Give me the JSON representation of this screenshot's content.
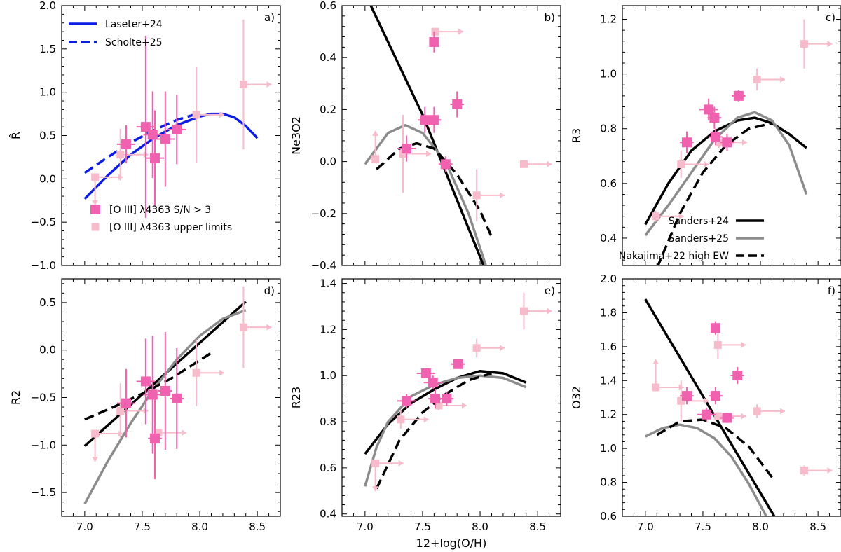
{
  "colors": {
    "detected": "#f062b0",
    "upper_limit": "#f7bccb",
    "laseter": "#0b1de3",
    "scholte": "#0b1de3",
    "sanders24": "#000000",
    "sanders25": "#8c8c8c",
    "nakajima": "#000000"
  },
  "chart_data": [
    {
      "type": "scatter",
      "panel": "a)",
      "ylabel": "R̂",
      "xlabel": "",
      "xlim": [
        6.8,
        8.7
      ],
      "ylim": [
        -1.0,
        2.0
      ],
      "xticks": [
        "7.0",
        "7.5",
        "8.0",
        "8.5"
      ],
      "yticks": [
        "−1.0",
        "−0.5",
        "0.0",
        "0.5",
        "1.0",
        "1.5",
        "2.0"
      ],
      "show_xticklabels": false,
      "legend": {
        "position": "top-left",
        "entries": [
          {
            "label": "Laseter+24",
            "style": "solid",
            "color": "#0b1de3"
          },
          {
            "label": "Scholte+25",
            "style": "dashed",
            "color": "#0b1de3"
          }
        ]
      },
      "legend2": {
        "position": "bottom-left",
        "entries": [
          {
            "label": "[O III] λ4363 S/N > 3",
            "kind": "detected"
          },
          {
            "label": "[O III] λ4363 upper limits",
            "kind": "upper"
          }
        ]
      },
      "curves": [
        {
          "name": "Laseter+24",
          "style": "solid",
          "color": "#0b1de3",
          "x": [
            7.0,
            7.2,
            7.4,
            7.6,
            7.8,
            8.0,
            8.1,
            8.2,
            8.3,
            8.4,
            8.5
          ],
          "y": [
            -0.23,
            0.04,
            0.28,
            0.47,
            0.62,
            0.72,
            0.75,
            0.75,
            0.71,
            0.61,
            0.47
          ]
        },
        {
          "name": "Scholte+25",
          "style": "dashed",
          "color": "#0b1de3",
          "x": [
            7.0,
            7.2,
            7.4,
            7.6,
            7.8,
            8.0
          ],
          "y": [
            0.07,
            0.25,
            0.42,
            0.56,
            0.68,
            0.76
          ]
        }
      ],
      "detected": [
        {
          "x": 7.36,
          "y": 0.4,
          "xerr": 0.08,
          "yerr": 0.22
        },
        {
          "x": 7.53,
          "y": 0.6,
          "xerr": 0.08,
          "yerr": 1.05
        },
        {
          "x": 7.59,
          "y": 0.51,
          "xerr": 0.08,
          "yerr": 0.5
        },
        {
          "x": 7.61,
          "y": 0.24,
          "xerr": 0.08,
          "yerr": 0.55
        },
        {
          "x": 7.7,
          "y": 0.46,
          "xerr": 0.08,
          "yerr": 0.55
        },
        {
          "x": 7.8,
          "y": 0.57,
          "xerr": 0.08,
          "yerr": 0.4
        }
      ],
      "upper_limits": [
        {
          "x": 7.09,
          "y": 0.02,
          "arrows": [
            "right",
            "down"
          ],
          "yerr": 0.0
        },
        {
          "x": 7.31,
          "y": 0.28,
          "arrows": [
            "right"
          ],
          "yerr": 0.3
        },
        {
          "x": 7.97,
          "y": 0.74,
          "arrows": [
            "right"
          ],
          "yerr": 0.55
        },
        {
          "x": 8.38,
          "y": 1.09,
          "arrows": [
            "right"
          ],
          "yerr": 0.75
        }
      ]
    },
    {
      "type": "scatter",
      "panel": "b)",
      "ylabel": "Ne3O2",
      "xlabel": "",
      "xlim": [
        6.8,
        8.7
      ],
      "ylim": [
        -0.4,
        0.6
      ],
      "xticks": [
        "7.0",
        "7.5",
        "8.0",
        "8.5"
      ],
      "yticks": [
        "−0.4",
        "−0.2",
        "0.0",
        "0.2",
        "0.4",
        "0.6"
      ],
      "show_xticklabels": false,
      "curves": [
        {
          "name": "Sanders+24",
          "style": "solid",
          "color": "#000000",
          "x": [
            7.05,
            7.5,
            8.03
          ],
          "y": [
            0.6,
            0.18,
            -0.4
          ]
        },
        {
          "name": "Sanders+25",
          "style": "solid",
          "color": "#8c8c8c",
          "x": [
            7.0,
            7.2,
            7.35,
            7.5,
            7.7,
            7.9,
            8.05
          ],
          "y": [
            -0.01,
            0.11,
            0.14,
            0.11,
            0.0,
            -0.2,
            -0.4
          ]
        },
        {
          "name": "Nakajima+22 high EW",
          "style": "dashed",
          "color": "#000000",
          "x": [
            7.1,
            7.3,
            7.45,
            7.6,
            7.8,
            8.0,
            8.1
          ],
          "y": [
            -0.03,
            0.05,
            0.07,
            0.05,
            -0.05,
            -0.19,
            -0.29
          ]
        }
      ],
      "detected": [
        {
          "x": 7.36,
          "y": 0.05,
          "xerr": 0.08,
          "yerr": 0.05
        },
        {
          "x": 7.52,
          "y": 0.16,
          "xerr": 0.06,
          "yerr": 0.05
        },
        {
          "x": 7.6,
          "y": 0.16,
          "xerr": 0.06,
          "yerr": 0.05
        },
        {
          "x": 7.6,
          "y": 0.46,
          "xerr": 0.0,
          "yerr": 0.04
        },
        {
          "x": 7.7,
          "y": -0.01,
          "xerr": 0.06,
          "yerr": 0.03
        },
        {
          "x": 7.8,
          "y": 0.22,
          "xerr": 0.06,
          "yerr": 0.05
        }
      ],
      "upper_limits": [
        {
          "x": 7.09,
          "y": 0.01,
          "arrows": [
            "up"
          ],
          "yerr": 0.0
        },
        {
          "x": 7.33,
          "y": 0.03,
          "arrows": [
            "right"
          ],
          "yerr": 0.15
        },
        {
          "x": 7.61,
          "y": 0.5,
          "arrows": [
            "right"
          ],
          "yerr": 0.0
        },
        {
          "x": 7.97,
          "y": -0.13,
          "arrows": [
            "right"
          ],
          "yerr": 0.1
        },
        {
          "x": 8.38,
          "y": -0.01,
          "arrows": [
            "right"
          ],
          "yerr": 0.0
        }
      ]
    },
    {
      "type": "scatter",
      "panel": "c)",
      "ylabel": "R3",
      "xlabel": "",
      "xlim": [
        6.8,
        8.7
      ],
      "ylim": [
        0.3,
        1.25
      ],
      "xticks": [
        "7.0",
        "7.5",
        "8.0",
        "8.5"
      ],
      "yticks": [
        "0.4",
        "0.6",
        "0.8",
        "1.0",
        "1.2"
      ],
      "show_xticklabels": false,
      "legend": {
        "position": "bottom-right",
        "entries": [
          {
            "label": "Sanders+24",
            "style": "solid",
            "color": "#000000"
          },
          {
            "label": "Sanders+25",
            "style": "solid",
            "color": "#8c8c8c"
          },
          {
            "label": "Nakajima+22 high EW",
            "style": "dashed",
            "color": "#000000"
          }
        ]
      },
      "curves": [
        {
          "name": "Sanders+24",
          "style": "solid",
          "color": "#000000",
          "x": [
            7.0,
            7.2,
            7.4,
            7.6,
            7.8,
            7.95,
            8.1,
            8.25,
            8.4
          ],
          "y": [
            0.45,
            0.6,
            0.72,
            0.79,
            0.83,
            0.84,
            0.82,
            0.78,
            0.73
          ]
        },
        {
          "name": "Sanders+25",
          "style": "solid",
          "color": "#8c8c8c",
          "x": [
            7.0,
            7.2,
            7.4,
            7.6,
            7.8,
            7.95,
            8.1,
            8.25,
            8.4
          ],
          "y": [
            0.41,
            0.52,
            0.64,
            0.76,
            0.84,
            0.86,
            0.83,
            0.74,
            0.56
          ]
        },
        {
          "name": "Nakajima+22 high EW",
          "style": "dashed",
          "color": "#000000",
          "x": [
            7.1,
            7.3,
            7.5,
            7.7,
            7.9,
            8.1
          ],
          "y": [
            0.29,
            0.49,
            0.64,
            0.74,
            0.8,
            0.82
          ]
        }
      ],
      "detected": [
        {
          "x": 7.36,
          "y": 0.75,
          "xerr": 0.06,
          "yerr": 0.04
        },
        {
          "x": 7.55,
          "y": 0.87,
          "xerr": 0.08,
          "yerr": 0.04
        },
        {
          "x": 7.6,
          "y": 0.84,
          "xerr": 0.06,
          "yerr": 0.04
        },
        {
          "x": 7.61,
          "y": 0.77,
          "xerr": 0.06,
          "yerr": 0.03
        },
        {
          "x": 7.71,
          "y": 0.75,
          "xerr": 0.06,
          "yerr": 0.03
        },
        {
          "x": 7.81,
          "y": 0.92,
          "xerr": 0.06,
          "yerr": 0.02
        }
      ],
      "upper_limits": [
        {
          "x": 7.09,
          "y": 0.48,
          "arrows": [
            "right"
          ],
          "yerr": 0.02
        },
        {
          "x": 7.31,
          "y": 0.67,
          "arrows": [
            "right"
          ],
          "yerr": 0.05
        },
        {
          "x": 7.64,
          "y": 0.75,
          "arrows": [
            "right"
          ],
          "yerr": 0.02
        },
        {
          "x": 7.97,
          "y": 0.98,
          "arrows": [
            "right"
          ],
          "yerr": 0.04
        },
        {
          "x": 8.38,
          "y": 1.11,
          "arrows": [
            "right"
          ],
          "yerr": 0.09
        }
      ]
    },
    {
      "type": "scatter",
      "panel": "d)",
      "ylabel": "R2",
      "xlabel": "",
      "xlim": [
        6.8,
        8.7
      ],
      "ylim": [
        -1.75,
        0.75
      ],
      "xticks": [
        "7.0",
        "7.5",
        "8.0",
        "8.5"
      ],
      "yticks": [
        "−1.5",
        "−1.0",
        "−0.5",
        "0.0",
        "0.5"
      ],
      "show_xticklabels": true,
      "curves": [
        {
          "name": "Sanders+24",
          "style": "solid",
          "color": "#000000",
          "x": [
            7.0,
            8.4
          ],
          "y": [
            -1.01,
            0.51
          ]
        },
        {
          "name": "Sanders+25",
          "style": "solid",
          "color": "#8c8c8c",
          "x": [
            7.0,
            7.2,
            7.4,
            7.6,
            7.8,
            8.0,
            8.2,
            8.4
          ],
          "y": [
            -1.62,
            -1.17,
            -0.77,
            -0.41,
            -0.1,
            0.15,
            0.33,
            0.42
          ]
        },
        {
          "name": "Nakajima+22 high EW",
          "style": "dashed",
          "color": "#000000",
          "x": [
            7.0,
            7.25,
            7.5,
            7.75,
            8.1
          ],
          "y": [
            -0.73,
            -0.6,
            -0.46,
            -0.3,
            -0.03
          ]
        }
      ],
      "detected": [
        {
          "x": 7.36,
          "y": -0.56,
          "xerr": 0.08,
          "yerr": 0.36
        },
        {
          "x": 7.53,
          "y": -0.33,
          "xerr": 0.08,
          "yerr": 0.45
        },
        {
          "x": 7.59,
          "y": -0.47,
          "xerr": 0.08,
          "yerr": 0.62
        },
        {
          "x": 7.61,
          "y": -0.93,
          "xerr": 0.06,
          "yerr": 0.43
        },
        {
          "x": 7.7,
          "y": -0.43,
          "xerr": 0.06,
          "yerr": 0.62
        },
        {
          "x": 7.8,
          "y": -0.51,
          "xerr": 0.06,
          "yerr": 0.53
        }
      ],
      "upper_limits": [
        {
          "x": 7.09,
          "y": -0.88,
          "arrows": [
            "right",
            "down"
          ],
          "yerr": 0.0
        },
        {
          "x": 7.31,
          "y": -0.64,
          "arrows": [
            "right"
          ],
          "yerr": 0.29
        },
        {
          "x": 7.64,
          "y": -0.87,
          "arrows": [
            "right"
          ],
          "yerr": 0.0
        },
        {
          "x": 7.97,
          "y": -0.24,
          "arrows": [
            "right"
          ],
          "yerr": 0.35
        },
        {
          "x": 8.38,
          "y": 0.24,
          "arrows": [
            "right"
          ],
          "yerr": 0.43
        }
      ]
    },
    {
      "type": "scatter",
      "panel": "e)",
      "ylabel": "R23",
      "xlabel": "12+log(O/H)",
      "xlim": [
        6.8,
        8.7
      ],
      "ylim": [
        0.39,
        1.42
      ],
      "xticks": [
        "7.0",
        "7.5",
        "8.0",
        "8.5"
      ],
      "yticks": [
        "0.4",
        "0.6",
        "0.8",
        "1.0",
        "1.2",
        "1.4"
      ],
      "show_xticklabels": true,
      "curves": [
        {
          "name": "Sanders+24",
          "style": "solid",
          "color": "#000000",
          "x": [
            7.0,
            7.2,
            7.4,
            7.6,
            7.8,
            8.0,
            8.2,
            8.4
          ],
          "y": [
            0.66,
            0.79,
            0.88,
            0.94,
            0.99,
            1.02,
            1.01,
            0.97
          ]
        },
        {
          "name": "Sanders+25",
          "style": "solid",
          "color": "#8c8c8c",
          "x": [
            7.0,
            7.1,
            7.2,
            7.4,
            7.6,
            7.8,
            8.0,
            8.2,
            8.4
          ],
          "y": [
            0.52,
            0.69,
            0.8,
            0.91,
            0.96,
            0.99,
            1.0,
            0.99,
            0.95
          ]
        },
        {
          "name": "Nakajima+22 high EW",
          "style": "dashed",
          "color": "#000000",
          "x": [
            7.1,
            7.3,
            7.5,
            7.7,
            7.9,
            8.1
          ],
          "y": [
            0.51,
            0.72,
            0.84,
            0.92,
            0.98,
            1.01
          ]
        }
      ],
      "detected": [
        {
          "x": 7.36,
          "y": 0.89,
          "xerr": 0.08,
          "yerr": 0.03
        },
        {
          "x": 7.53,
          "y": 1.01,
          "xerr": 0.08,
          "yerr": 0.02
        },
        {
          "x": 7.59,
          "y": 0.97,
          "xerr": 0.08,
          "yerr": 0.03
        },
        {
          "x": 7.61,
          "y": 0.9,
          "xerr": 0.06,
          "yerr": 0.04
        },
        {
          "x": 7.71,
          "y": 0.9,
          "xerr": 0.06,
          "yerr": 0.03
        },
        {
          "x": 7.81,
          "y": 1.05,
          "xerr": 0.06,
          "yerr": 0.01
        }
      ],
      "upper_limits": [
        {
          "x": 7.09,
          "y": 0.62,
          "arrows": [
            "right",
            "down"
          ],
          "yerr": 0.0
        },
        {
          "x": 7.31,
          "y": 0.81,
          "arrows": [
            "right"
          ],
          "yerr": 0.04
        },
        {
          "x": 7.64,
          "y": 0.87,
          "arrows": [
            "right"
          ],
          "yerr": 0.02
        },
        {
          "x": 7.97,
          "y": 1.12,
          "arrows": [
            "right"
          ],
          "yerr": 0.04
        },
        {
          "x": 8.38,
          "y": 1.28,
          "arrows": [
            "right"
          ],
          "yerr": 0.08
        }
      ]
    },
    {
      "type": "scatter",
      "panel": "f)",
      "ylabel": "O32",
      "xlabel": "",
      "xlim": [
        6.8,
        8.7
      ],
      "ylim": [
        0.6,
        2.0
      ],
      "xticks": [
        "7.0",
        "7.5",
        "8.0",
        "8.5"
      ],
      "yticks": [
        "0.6",
        "0.8",
        "1.0",
        "1.2",
        "1.4",
        "1.6",
        "1.8",
        "2.0"
      ],
      "show_xticklabels": true,
      "curves": [
        {
          "name": "Sanders+24",
          "style": "solid",
          "color": "#000000",
          "x": [
            7.0,
            8.12
          ],
          "y": [
            1.88,
            0.6
          ]
        },
        {
          "name": "Sanders+25",
          "style": "solid",
          "color": "#8c8c8c",
          "x": [
            7.0,
            7.15,
            7.3,
            7.45,
            7.6,
            7.75,
            7.9,
            8.05
          ],
          "y": [
            1.07,
            1.12,
            1.14,
            1.12,
            1.06,
            0.95,
            0.79,
            0.6
          ]
        },
        {
          "name": "Nakajima+22 high EW",
          "style": "dashed",
          "color": "#000000",
          "x": [
            7.1,
            7.3,
            7.5,
            7.7,
            7.9,
            8.1
          ],
          "y": [
            1.08,
            1.16,
            1.17,
            1.12,
            1.01,
            0.83
          ]
        }
      ],
      "detected": [
        {
          "x": 7.36,
          "y": 1.31,
          "xerr": 0.06,
          "yerr": 0.05
        },
        {
          "x": 7.53,
          "y": 1.2,
          "xerr": 0.08,
          "yerr": 0.04
        },
        {
          "x": 7.61,
          "y": 1.31,
          "xerr": 0.06,
          "yerr": 0.05
        },
        {
          "x": 7.61,
          "y": 1.71,
          "xerr": 0.0,
          "yerr": 0.04
        },
        {
          "x": 7.71,
          "y": 1.18,
          "xerr": 0.06,
          "yerr": 0.03
        },
        {
          "x": 7.8,
          "y": 1.43,
          "xerr": 0.06,
          "yerr": 0.05
        }
      ],
      "upper_limits": [
        {
          "x": 7.09,
          "y": 1.36,
          "arrows": [
            "up",
            "right"
          ],
          "yerr": 0.0
        },
        {
          "x": 7.31,
          "y": 1.28,
          "arrows": [
            "right"
          ],
          "yerr": 0.12
        },
        {
          "x": 7.63,
          "y": 1.61,
          "arrows": [
            "right"
          ],
          "yerr": 0.08
        },
        {
          "x": 7.63,
          "y": 1.19,
          "arrows": [
            "right"
          ],
          "yerr": 0.0
        },
        {
          "x": 7.97,
          "y": 1.22,
          "arrows": [
            "right"
          ],
          "yerr": 0.04
        },
        {
          "x": 8.38,
          "y": 0.87,
          "arrows": [
            "right"
          ],
          "yerr": 0.03
        }
      ]
    }
  ]
}
